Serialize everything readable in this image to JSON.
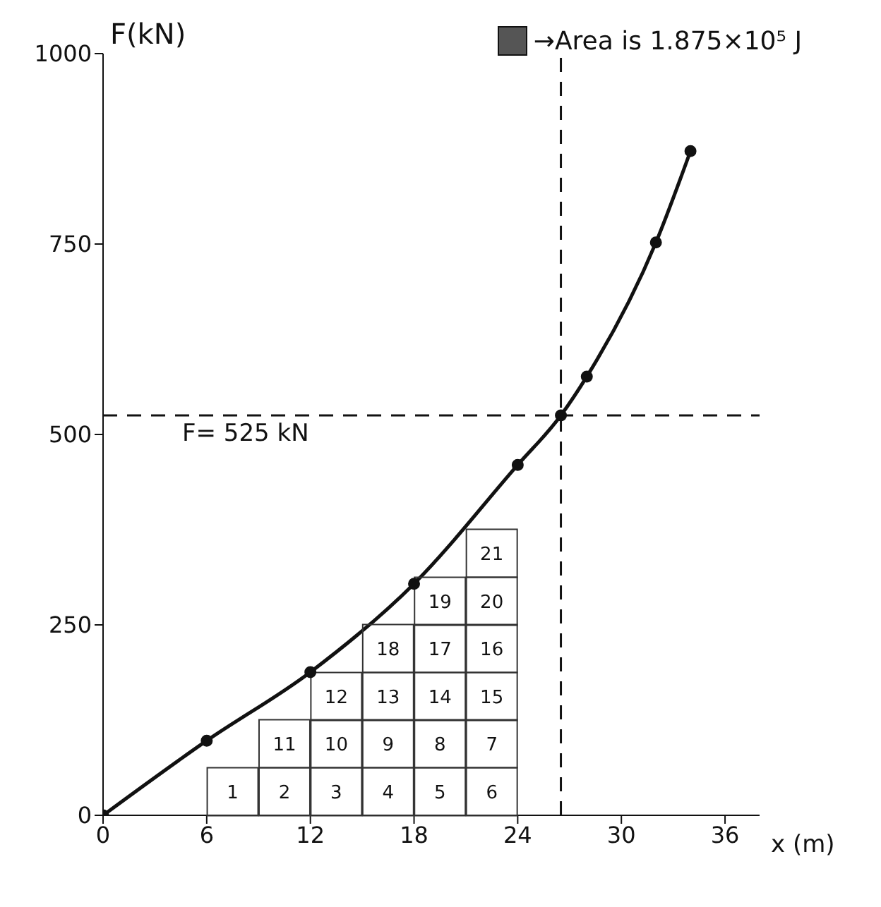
{
  "chart_data": {
    "type": "line",
    "xlabel": "x (m)",
    "ylabel": "F(kN)",
    "x": [
      0,
      6,
      12,
      18,
      24,
      26.5,
      28,
      32,
      34
    ],
    "series": [
      {
        "color": "#111111",
        "values": [
          0,
          98,
          188,
          304,
          460,
          525,
          576,
          752,
          872
        ]
      }
    ],
    "xlim": [
      0,
      38
    ],
    "xticks": [
      0,
      6,
      12,
      18,
      24,
      30,
      36
    ],
    "ylim": [
      0,
      1000
    ],
    "yticks": [
      0,
      250,
      500,
      750,
      1000
    ],
    "grid": false,
    "legend": false,
    "marker": "circle",
    "line_style": "solid",
    "ref_lines": [
      {
        "axis": "y",
        "value": 525,
        "label": "F= 525 kN",
        "line_style": "dashed",
        "color": "#111111"
      },
      {
        "axis": "x",
        "value": 26.5,
        "line_style": "dashed",
        "color": "#111111"
      }
    ],
    "annotations": [
      "→Area is 1.875×10⁵ J",
      {
        "text": "1",
        "x": 7.5,
        "y": 31
      },
      {
        "text": "2",
        "x": 10.5,
        "y": 31
      },
      {
        "text": "3",
        "x": 13.5,
        "y": 31
      },
      {
        "text": "4",
        "x": 16.5,
        "y": 31
      },
      {
        "text": "5",
        "x": 19.5,
        "y": 31
      },
      {
        "text": "6",
        "x": 22.5,
        "y": 31
      },
      {
        "text": "11",
        "x": 10.5,
        "y": 94
      },
      {
        "text": "10",
        "x": 13.5,
        "y": 94
      },
      {
        "text": "9",
        "x": 16.5,
        "y": 94
      },
      {
        "text": "8",
        "x": 19.5,
        "y": 94
      },
      {
        "text": "7",
        "x": 22.5,
        "y": 94
      },
      {
        "text": "12",
        "x": 13.5,
        "y": 156
      },
      {
        "text": "13",
        "x": 16.5,
        "y": 156
      },
      {
        "text": "14",
        "x": 19.5,
        "y": 156
      },
      {
        "text": "15",
        "x": 22.5,
        "y": 156
      },
      {
        "text": "18",
        "x": 16.5,
        "y": 219
      },
      {
        "text": "17",
        "x": 19.5,
        "y": 219
      },
      {
        "text": "16",
        "x": 22.5,
        "y": 219
      },
      {
        "text": "19",
        "x": 19.5,
        "y": 281
      },
      {
        "text": "20",
        "x": 22.5,
        "y": 281
      },
      {
        "text": "21",
        "x": 22.5,
        "y": 344
      }
    ]
  }
}
